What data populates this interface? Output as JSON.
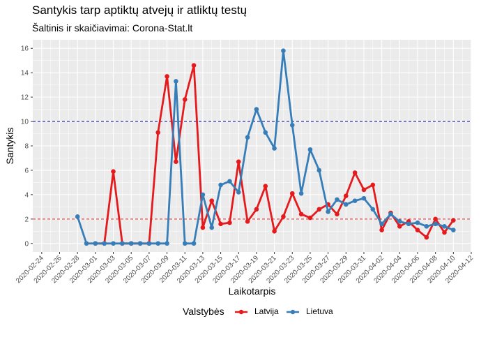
{
  "title": "Santykis tarp aptiktų atvejų ir atliktų testų",
  "subtitle": "Šaltinis ir skaičiavimai: Corona-Stat.lt",
  "legend": {
    "title": "Valstybės"
  },
  "colors": {
    "latvia": "#e41a1c",
    "lithuania": "#377eb8",
    "ref_high": "#00008b",
    "ref_low": "#e41a1c",
    "panel": "#ebebeb"
  },
  "chart_data": {
    "type": "line",
    "xlabel": "Laikotarpis",
    "ylabel": "Santykis",
    "xlim": [
      "2020-02-23",
      "2020-04-12"
    ],
    "ylim": [
      -0.7,
      16.7
    ],
    "y_ticks": [
      0,
      2,
      4,
      6,
      8,
      10,
      12,
      14,
      16
    ],
    "x_ticks": [
      "2020-02-24",
      "2020-02-26",
      "2020-02-28",
      "2020-03-01",
      "2020-03-03",
      "2020-03-05",
      "2020-03-07",
      "2020-03-09",
      "2020-03-11",
      "2020-03-13",
      "2020-03-15",
      "2020-03-17",
      "2020-03-19",
      "2020-03-21",
      "2020-03-23",
      "2020-03-25",
      "2020-03-27",
      "2020-03-29",
      "2020-03-31",
      "2020-04-02",
      "2020-04-04",
      "2020-04-06",
      "2020-04-08",
      "2020-04-10",
      "2020-04-12"
    ],
    "grid": true,
    "legend_position": "bottom",
    "reference_lines": [
      {
        "y": 10,
        "style": "dashed",
        "color": "#00008b"
      },
      {
        "y": 2,
        "style": "dashed",
        "color": "#e41a1c"
      }
    ],
    "series": [
      {
        "name": "Latvija",
        "color": "#e41a1c",
        "points": [
          [
            "2020-03-01",
            0.0
          ],
          [
            "2020-03-02",
            0.0
          ],
          [
            "2020-03-03",
            5.9
          ],
          [
            "2020-03-04",
            0.0
          ],
          [
            "2020-03-05",
            0.0
          ],
          [
            "2020-03-06",
            0.0
          ],
          [
            "2020-03-07",
            0.0
          ],
          [
            "2020-03-08",
            9.1
          ],
          [
            "2020-03-09",
            13.7
          ],
          [
            "2020-03-10",
            6.7
          ],
          [
            "2020-03-11",
            11.8
          ],
          [
            "2020-03-12",
            14.6
          ],
          [
            "2020-03-13",
            1.3
          ],
          [
            "2020-03-14",
            3.5
          ],
          [
            "2020-03-15",
            1.6
          ],
          [
            "2020-03-16",
            1.7
          ],
          [
            "2020-03-17",
            6.7
          ],
          [
            "2020-03-18",
            1.8
          ],
          [
            "2020-03-19",
            2.8
          ],
          [
            "2020-03-20",
            4.7
          ],
          [
            "2020-03-21",
            1.0
          ],
          [
            "2020-03-22",
            2.2
          ],
          [
            "2020-03-23",
            4.1
          ],
          [
            "2020-03-24",
            2.4
          ],
          [
            "2020-03-25",
            2.1
          ],
          [
            "2020-03-26",
            2.8
          ],
          [
            "2020-03-27",
            3.2
          ],
          [
            "2020-03-28",
            2.4
          ],
          [
            "2020-03-29",
            3.9
          ],
          [
            "2020-03-30",
            5.8
          ],
          [
            "2020-03-31",
            4.4
          ],
          [
            "2020-04-01",
            4.8
          ],
          [
            "2020-04-02",
            1.1
          ],
          [
            "2020-04-03",
            2.5
          ],
          [
            "2020-04-04",
            1.4
          ],
          [
            "2020-04-05",
            1.8
          ],
          [
            "2020-04-06",
            1.1
          ],
          [
            "2020-04-07",
            0.5
          ],
          [
            "2020-04-08",
            2.0
          ],
          [
            "2020-04-09",
            0.9
          ],
          [
            "2020-04-10",
            1.9
          ]
        ]
      },
      {
        "name": "Lietuva",
        "color": "#377eb8",
        "points": [
          [
            "2020-02-28",
            2.2
          ],
          [
            "2020-02-29",
            0.0
          ],
          [
            "2020-03-01",
            0.0
          ],
          [
            "2020-03-02",
            0.0
          ],
          [
            "2020-03-03",
            0.0
          ],
          [
            "2020-03-04",
            0.0
          ],
          [
            "2020-03-05",
            0.0
          ],
          [
            "2020-03-06",
            0.0
          ],
          [
            "2020-03-07",
            0.0
          ],
          [
            "2020-03-08",
            0.0
          ],
          [
            "2020-03-09",
            0.0
          ],
          [
            "2020-03-10",
            13.3
          ],
          [
            "2020-03-11",
            0.0
          ],
          [
            "2020-03-12",
            0.0
          ],
          [
            "2020-03-13",
            4.0
          ],
          [
            "2020-03-14",
            1.3
          ],
          [
            "2020-03-15",
            4.8
          ],
          [
            "2020-03-16",
            5.1
          ],
          [
            "2020-03-17",
            4.2
          ],
          [
            "2020-03-18",
            8.7
          ],
          [
            "2020-03-19",
            11.0
          ],
          [
            "2020-03-20",
            9.1
          ],
          [
            "2020-03-21",
            7.8
          ],
          [
            "2020-03-22",
            15.8
          ],
          [
            "2020-03-23",
            9.7
          ],
          [
            "2020-03-24",
            4.1
          ],
          [
            "2020-03-25",
            7.7
          ],
          [
            "2020-03-26",
            6.0
          ],
          [
            "2020-03-27",
            2.6
          ],
          [
            "2020-03-28",
            3.6
          ],
          [
            "2020-03-29",
            3.2
          ],
          [
            "2020-03-30",
            3.5
          ],
          [
            "2020-03-31",
            3.7
          ],
          [
            "2020-04-01",
            2.8
          ],
          [
            "2020-04-02",
            1.6
          ],
          [
            "2020-04-03",
            2.4
          ],
          [
            "2020-04-04",
            1.8
          ],
          [
            "2020-04-05",
            1.6
          ],
          [
            "2020-04-06",
            1.7
          ],
          [
            "2020-04-07",
            1.4
          ],
          [
            "2020-04-08",
            1.6
          ],
          [
            "2020-04-09",
            1.4
          ],
          [
            "2020-04-10",
            1.1
          ]
        ]
      }
    ]
  }
}
